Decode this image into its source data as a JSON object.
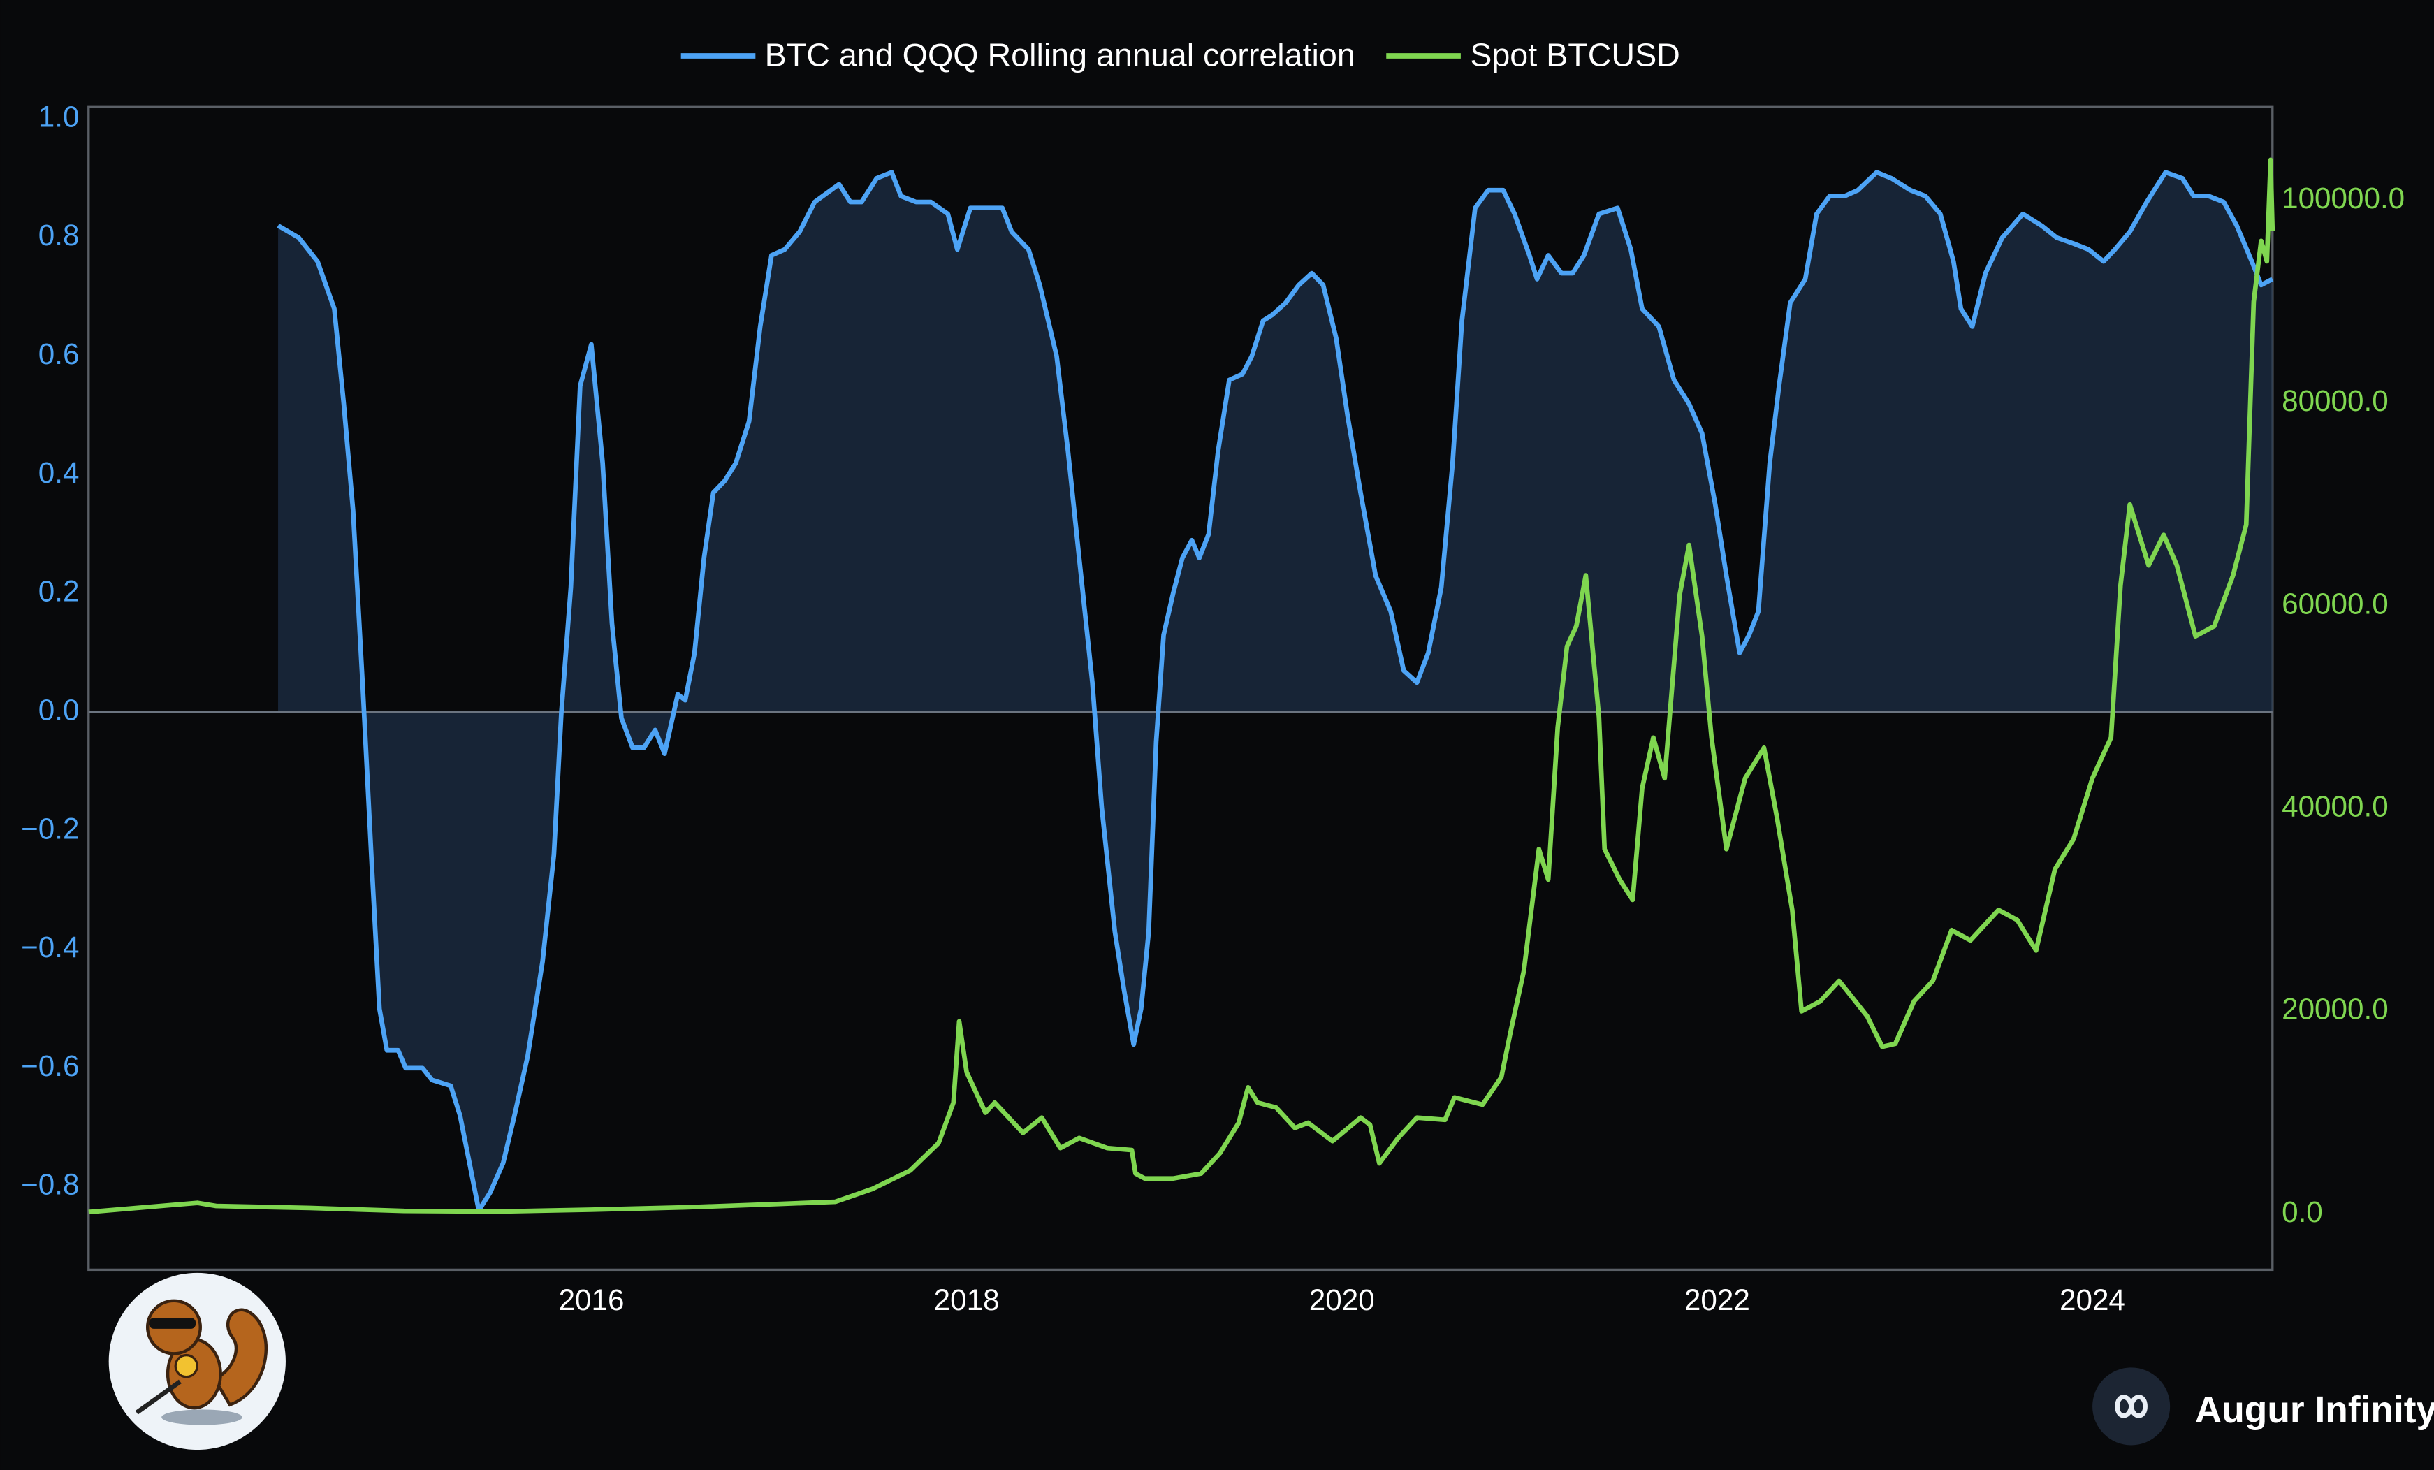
{
  "chart_data": {
    "type": "line",
    "xlim": [
      2013.32,
      2024.96
    ],
    "xticks": [
      2016,
      2018,
      2020,
      2022,
      2024
    ],
    "ylim": [
      -0.94,
      1.02
    ],
    "yticks": [
      {
        "value": -0.8,
        "label": "−0.8"
      },
      {
        "value": -0.6,
        "label": "−0.6"
      },
      {
        "value": -0.4,
        "label": "−0.4"
      },
      {
        "value": -0.2,
        "label": "−0.2"
      },
      {
        "value": 0,
        "label": "0.0"
      },
      0.2,
      0.4,
      0.6,
      0.8,
      {
        "value": 1,
        "label": "1.0"
      }
    ],
    "y2lim": [
      -5500,
      109200
    ],
    "y2ticks": [
      {
        "value": 0,
        "label": "0.0"
      },
      {
        "value": 20000,
        "label": "20000.0"
      },
      {
        "value": 40000,
        "label": "40000.0"
      },
      {
        "value": 60000,
        "label": "60000.0"
      },
      {
        "value": 80000,
        "label": "80000.0"
      },
      {
        "value": 100000,
        "label": "100000.0"
      }
    ],
    "grid": false,
    "legend": "top",
    "series": [
      {
        "name": "BTC and QQQ Rolling annual correlation",
        "color": "#4da3f5",
        "fill": true,
        "x": [
          2014.33,
          2014.44,
          2014.54,
          2014.63,
          2014.68,
          2014.73,
          2014.78,
          2014.83,
          2014.87,
          2014.91,
          2014.97,
          2015.01,
          2015.1,
          2015.15,
          2015.25,
          2015.3,
          2015.35,
          2015.4,
          2015.46,
          2015.53,
          2015.59,
          2015.66,
          2015.74,
          2015.8,
          2015.84,
          2015.89,
          2015.94,
          2016.0,
          2016.06,
          2016.11,
          2016.16,
          2016.22,
          2016.28,
          2016.34,
          2016.39,
          2016.46,
          2016.5,
          2016.55,
          2016.6,
          2016.65,
          2016.71,
          2016.77,
          2016.84,
          2016.9,
          2016.96,
          2017.03,
          2017.11,
          2017.19,
          2017.32,
          2017.38,
          2017.44,
          2017.52,
          2017.6,
          2017.65,
          2017.73,
          2017.81,
          2017.9,
          2017.95,
          2018.02,
          2018.08,
          2018.19,
          2018.24,
          2018.33,
          2018.39,
          2018.48,
          2018.54,
          2018.6,
          2018.67,
          2018.72,
          2018.79,
          2018.84,
          2018.89,
          2018.93,
          2018.97,
          2019.01,
          2019.05,
          2019.1,
          2019.15,
          2019.2,
          2019.24,
          2019.29,
          2019.34,
          2019.4,
          2019.47,
          2019.52,
          2019.58,
          2019.63,
          2019.7,
          2019.77,
          2019.84,
          2019.9,
          2019.97,
          2020.03,
          2020.1,
          2020.18,
          2020.26,
          2020.33,
          2020.4,
          2020.46,
          2020.53,
          2020.59,
          2020.64,
          2020.71,
          2020.78,
          2020.86,
          2020.92,
          2021.0,
          2021.04,
          2021.1,
          2021.17,
          2021.23,
          2021.29,
          2021.37,
          2021.47,
          2021.54,
          2021.6,
          2021.69,
          2021.77,
          2021.85,
          2021.92,
          2021.99,
          2022.05,
          2022.12,
          2022.17,
          2022.22,
          2022.28,
          2022.33,
          2022.39,
          2022.47,
          2022.53,
          2022.6,
          2022.68,
          2022.75,
          2022.85,
          2022.93,
          2023.03,
          2023.11,
          2023.19,
          2023.26,
          2023.3,
          2023.36,
          2023.43,
          2023.52,
          2023.63,
          2023.73,
          2023.81,
          2023.9,
          2023.98,
          2024.06,
          2024.12,
          2024.2,
          2024.29,
          2024.39,
          2024.48,
          2024.54,
          2024.62,
          2024.7,
          2024.77,
          2024.85,
          2024.9,
          2024.96
        ],
        "values": [
          0.82,
          0.8,
          0.76,
          0.68,
          0.52,
          0.34,
          0.05,
          -0.26,
          -0.5,
          -0.57,
          -0.57,
          -0.6,
          -0.6,
          -0.62,
          -0.63,
          -0.68,
          -0.76,
          -0.84,
          -0.81,
          -0.76,
          -0.68,
          -0.58,
          -0.42,
          -0.24,
          0.0,
          0.21,
          0.55,
          0.62,
          0.42,
          0.15,
          -0.01,
          -0.06,
          -0.06,
          -0.03,
          -0.07,
          0.03,
          0.02,
          0.1,
          0.26,
          0.37,
          0.39,
          0.42,
          0.49,
          0.65,
          0.77,
          0.78,
          0.81,
          0.86,
          0.89,
          0.86,
          0.86,
          0.9,
          0.91,
          0.87,
          0.86,
          0.86,
          0.84,
          0.78,
          0.85,
          0.85,
          0.85,
          0.81,
          0.78,
          0.72,
          0.6,
          0.44,
          0.26,
          0.05,
          -0.16,
          -0.37,
          -0.47,
          -0.56,
          -0.5,
          -0.37,
          -0.05,
          0.13,
          0.2,
          0.26,
          0.29,
          0.26,
          0.3,
          0.44,
          0.56,
          0.57,
          0.6,
          0.66,
          0.67,
          0.69,
          0.72,
          0.74,
          0.72,
          0.63,
          0.5,
          0.37,
          0.23,
          0.17,
          0.07,
          0.05,
          0.1,
          0.21,
          0.42,
          0.66,
          0.85,
          0.88,
          0.88,
          0.84,
          0.77,
          0.73,
          0.77,
          0.74,
          0.74,
          0.77,
          0.84,
          0.85,
          0.78,
          0.68,
          0.65,
          0.56,
          0.52,
          0.47,
          0.35,
          0.23,
          0.1,
          0.13,
          0.17,
          0.42,
          0.55,
          0.69,
          0.73,
          0.84,
          0.87,
          0.87,
          0.88,
          0.91,
          0.9,
          0.88,
          0.87,
          0.84,
          0.76,
          0.68,
          0.65,
          0.74,
          0.8,
          0.84,
          0.82,
          0.8,
          0.79,
          0.78,
          0.76,
          0.78,
          0.81,
          0.86,
          0.91,
          0.9,
          0.87,
          0.87,
          0.86,
          0.82,
          0.76,
          0.72,
          0.73
        ]
      },
      {
        "name": "Spot BTCUSD",
        "color": "#7fd650",
        "axis": "y2",
        "x": [
          2013.32,
          2013.9,
          2014.0,
          2014.5,
          2015.0,
          2015.5,
          2016.0,
          2016.5,
          2017.0,
          2017.3,
          2017.5,
          2017.7,
          2017.85,
          2017.93,
          2017.96,
          2018.0,
          2018.1,
          2018.15,
          2018.3,
          2018.4,
          2018.5,
          2018.6,
          2018.75,
          2018.88,
          2018.9,
          2018.95,
          2019.1,
          2019.25,
          2019.35,
          2019.45,
          2019.5,
          2019.55,
          2019.65,
          2019.75,
          2019.82,
          2019.95,
          2020.1,
          2020.15,
          2020.2,
          2020.3,
          2020.4,
          2020.55,
          2020.6,
          2020.75,
          2020.85,
          2020.9,
          2020.97,
          2021.05,
          2021.1,
          2021.15,
          2021.2,
          2021.25,
          2021.3,
          2021.37,
          2021.4,
          2021.48,
          2021.55,
          2021.6,
          2021.66,
          2021.72,
          2021.8,
          2021.85,
          2021.92,
          2021.97,
          2022.05,
          2022.15,
          2022.25,
          2022.32,
          2022.4,
          2022.45,
          2022.55,
          2022.65,
          2022.8,
          2022.88,
          2022.95,
          2023.05,
          2023.15,
          2023.25,
          2023.35,
          2023.5,
          2023.6,
          2023.7,
          2023.8,
          2023.9,
          2024.0,
          2024.1,
          2024.15,
          2024.2,
          2024.3,
          2024.38,
          2024.45,
          2024.55,
          2024.65,
          2024.75,
          2024.82,
          2024.86,
          2024.9,
          2024.93,
          2024.95,
          2024.96
        ],
        "values": [
          200,
          1100,
          800,
          600,
          300,
          250,
          430,
          650,
          1000,
          1200,
          2500,
          4300,
          7000,
          11000,
          19000,
          14000,
          10000,
          11000,
          8000,
          9500,
          6500,
          7500,
          6500,
          6300,
          4000,
          3500,
          3500,
          4000,
          6000,
          9000,
          12500,
          11000,
          10500,
          8500,
          9000,
          7200,
          9500,
          8800,
          5000,
          7500,
          9500,
          9300,
          11500,
          10800,
          13500,
          18000,
          24000,
          36000,
          33000,
          48000,
          56000,
          58000,
          63000,
          49000,
          36000,
          33000,
          31000,
          42000,
          47000,
          43000,
          61000,
          66000,
          57000,
          47000,
          36000,
          43000,
          46000,
          39000,
          30000,
          20000,
          21000,
          23000,
          19500,
          16500,
          16800,
          21000,
          23000,
          28000,
          27000,
          30000,
          29000,
          26000,
          34000,
          37000,
          43000,
          47000,
          62000,
          70000,
          64000,
          67000,
          64000,
          57000,
          58000,
          63000,
          68000,
          90000,
          96000,
          94000,
          104000,
          97000
        ]
      }
    ]
  },
  "watermark": {
    "brand": "Augur Infinity"
  }
}
